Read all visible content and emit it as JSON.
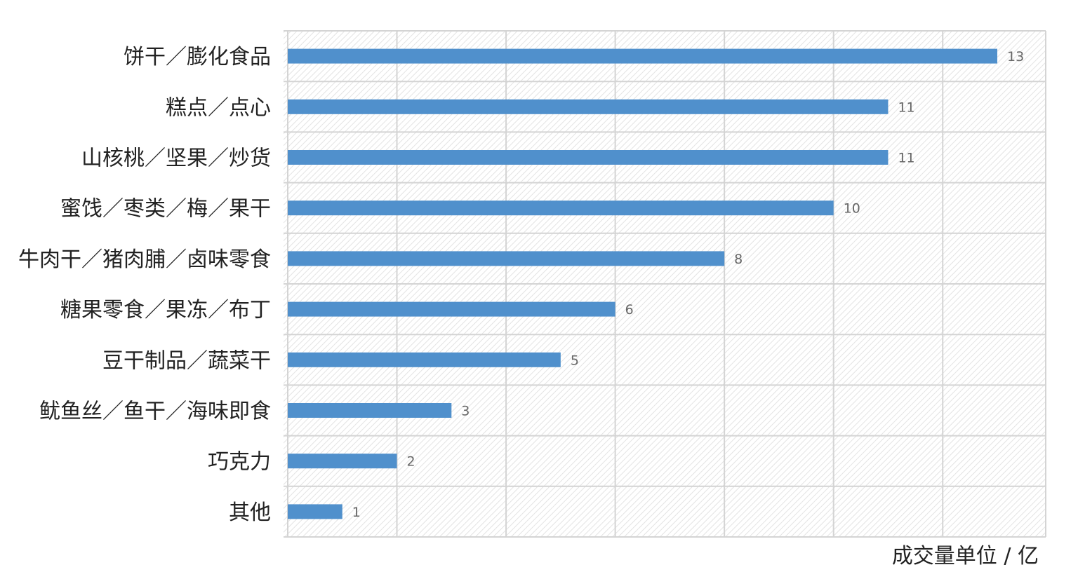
{
  "chart_data": {
    "type": "bar",
    "orientation": "horizontal",
    "categories": [
      "饼干／膨化食品",
      "糕点／点心",
      "山核桃／坚果／炒货",
      "蜜饯／枣类／梅／果干",
      "牛肉干／猪肉脯／卤味零食",
      "糖果零食／果冻／布丁",
      "豆干制品／蔬菜干",
      "鱿鱼丝／鱼干／海味即食",
      "巧克力",
      "其他"
    ],
    "values": [
      13,
      11,
      11,
      10,
      8,
      6,
      5,
      3,
      2,
      1
    ],
    "unit_label": "成交量单位 / 亿",
    "xlim": [
      0,
      14
    ],
    "grid": true,
    "legend": "none",
    "bar_color": "#5090cc",
    "background_pattern": "diagonal-hatch"
  }
}
